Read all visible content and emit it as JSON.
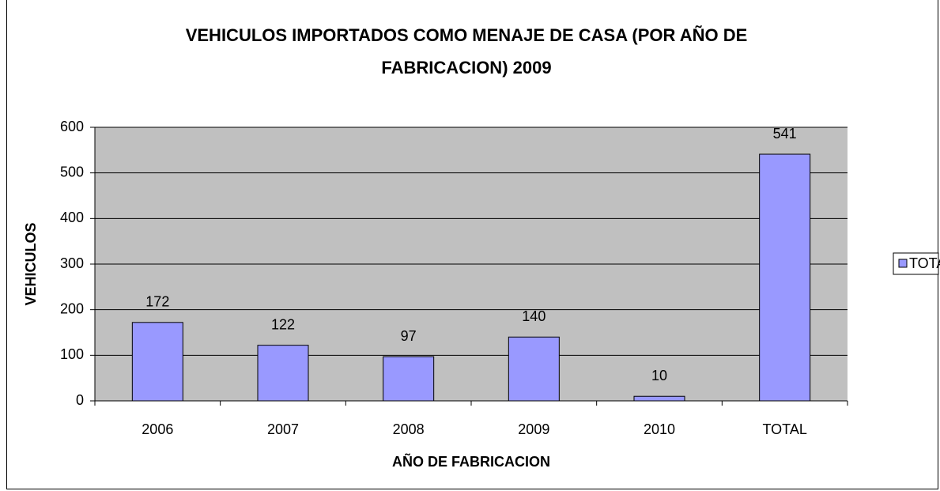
{
  "chart_data": {
    "type": "bar",
    "title": "VEHICULOS IMPORTADOS COMO MENAJE DE CASA (POR AÑO DE FABRICACION) 2009",
    "x_label": "AÑO DE FABRICACION",
    "y_label": "VEHICULOS",
    "categories": [
      "2006",
      "2007",
      "2008",
      "2009",
      "2010",
      "TOTAL"
    ],
    "series": [
      {
        "name": "TOTAL",
        "color": "#9999ff",
        "values": [
          172,
          122,
          97,
          140,
          10,
          541
        ]
      }
    ],
    "ylim": [
      0,
      600
    ],
    "yticks": [
      0,
      100,
      200,
      300,
      400,
      500,
      600
    ],
    "grid": true,
    "legend": "right"
  }
}
